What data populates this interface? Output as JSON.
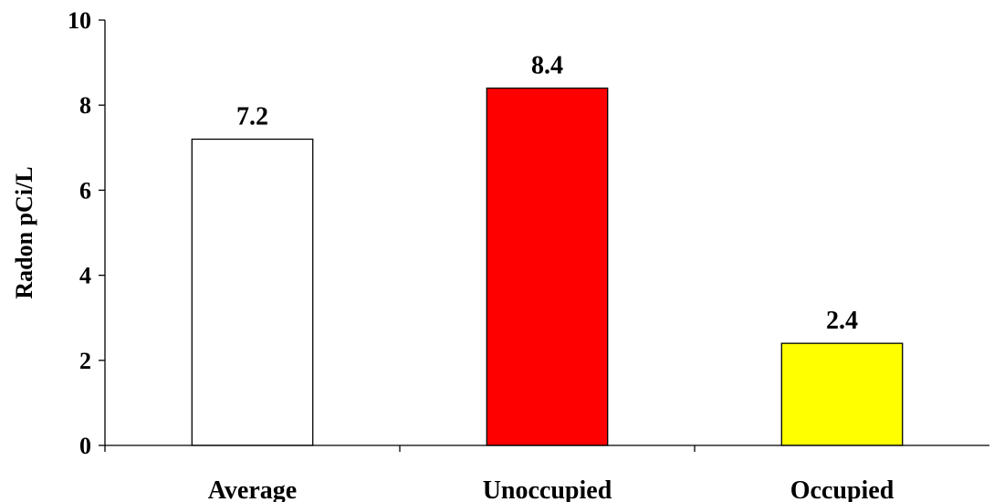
{
  "chart_data": {
    "type": "bar",
    "title": "",
    "xlabel": "",
    "ylabel": "Radon pCi/L",
    "categories": [
      "Average",
      "Unoccupied",
      "Occupied"
    ],
    "values": [
      7.2,
      8.4,
      2.4
    ],
    "data_labels": [
      "7.2",
      "8.4",
      "2.4"
    ],
    "colors": [
      "#ffffff",
      "#ff0000",
      "#ffff00"
    ],
    "ylim": [
      0,
      10
    ],
    "yticks": [
      0,
      2,
      4,
      6,
      8,
      10
    ],
    "grid": false,
    "legend": "none"
  }
}
